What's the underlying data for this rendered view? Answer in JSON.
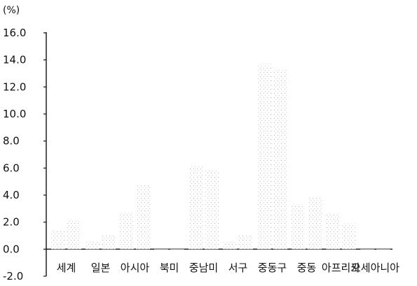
{
  "chart_data": {
    "type": "bar",
    "unit_label": "(%)",
    "categories": [
      "세계",
      "일본",
      "아시아",
      "북미",
      "중남미",
      "서구",
      "중동구",
      "중동",
      "아프리카",
      "오세아니아"
    ],
    "series": [
      {
        "values": [
          1.4,
          0.6,
          2.7,
          0.0,
          6.2,
          0.6,
          13.7,
          3.3,
          2.6,
          0.0
        ]
      },
      {
        "values": [
          2.2,
          1.0,
          4.8,
          0.0,
          5.9,
          1.1,
          13.3,
          3.8,
          1.9,
          0.0
        ]
      }
    ],
    "ylim": [
      -2.0,
      16.0
    ],
    "yticks": [
      "16.0",
      "14.0",
      "12.0",
      "10.0",
      "8.0",
      "6.0",
      "4.0",
      "2.0",
      "0.0",
      "-2.0"
    ],
    "grid": false,
    "colors": {
      "axis": "#111111",
      "bar_fill": "#ffffff",
      "bar_dots": "#b8b8b8"
    }
  }
}
